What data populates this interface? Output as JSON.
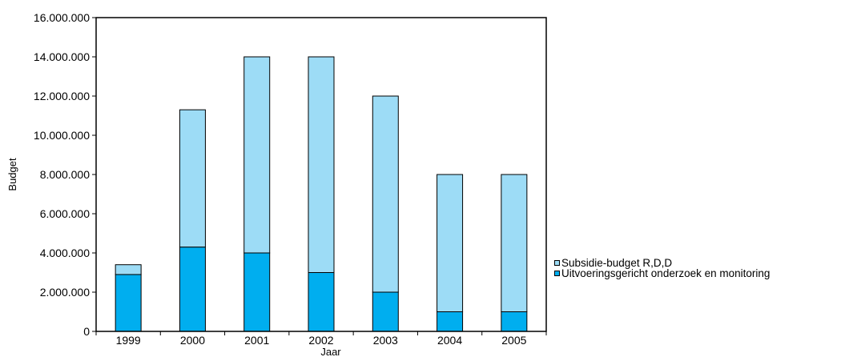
{
  "chart_data": {
    "type": "bar",
    "stacked": true,
    "categories": [
      "1999",
      "2000",
      "2001",
      "2002",
      "2003",
      "2004",
      "2005"
    ],
    "series": [
      {
        "name": "Uitvoeringsgericht onderzoek en monitoring",
        "color": "#00aeef",
        "values": [
          2900000,
          4300000,
          4000000,
          3000000,
          2000000,
          1000000,
          1000000
        ]
      },
      {
        "name": "Subsidie-budget R,D,D",
        "color": "#9ddcf6",
        "values": [
          500000,
          7000000,
          10000000,
          11000000,
          10000000,
          7000000,
          7000000
        ]
      }
    ],
    "ylim": [
      0,
      16000000
    ],
    "yticks": [
      0,
      2000000,
      4000000,
      6000000,
      8000000,
      10000000,
      12000000,
      14000000,
      16000000
    ],
    "ytick_labels": [
      "0",
      "2.000.000",
      "4.000.000",
      "6.000.000",
      "8.000.000",
      "10.000.000",
      "12.000.000",
      "14.000.000",
      "16.000.000"
    ],
    "xlabel": "Jaar",
    "ylabel": "Budget",
    "grid": false,
    "legend_position": "right"
  },
  "legend": {
    "items": [
      {
        "label": "Subsidie-budget R,D,D",
        "color": "#9ddcf6"
      },
      {
        "label": "Uitvoeringsgericht onderzoek en monitoring",
        "color": "#00aeef"
      }
    ]
  }
}
